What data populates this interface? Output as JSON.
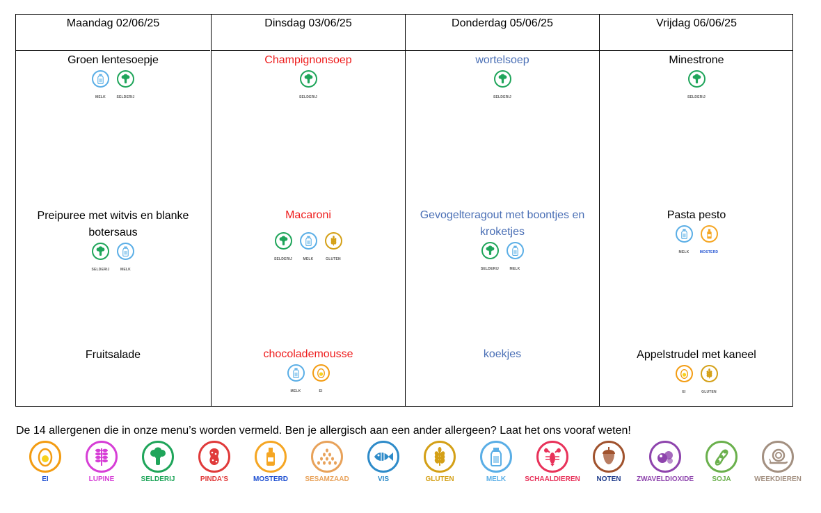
{
  "menu": {
    "columns": [
      {
        "day": "Maandag 02/06/25",
        "soup": {
          "name": "Groen lentesoepje",
          "allergens": [
            [
              "melk",
              "MELK"
            ],
            [
              "selderij",
              "SELDERIJ"
            ]
          ]
        },
        "main": {
          "name": "Preipuree met witvis en blanke botersaus",
          "allergens": [
            [
              "selderij",
              "SELDERIJ"
            ],
            [
              "melk",
              "MELK"
            ]
          ]
        },
        "dessert": {
          "name": "Fruitsalade",
          "allergens": []
        }
      },
      {
        "day": "Dinsdag 03/06/25",
        "soup": {
          "name": "Champignonsoep",
          "allergens": [
            [
              "selderij",
              "SELDERIJ"
            ]
          ]
        },
        "main": {
          "name": "Macaroni",
          "allergens": [
            [
              "selderij",
              "SELDERIJ"
            ],
            [
              "melk",
              "MELK"
            ],
            [
              "gluten",
              "GLUTEN"
            ]
          ]
        },
        "dessert": {
          "name": "chocolademousse",
          "allergens": [
            [
              "melk",
              "MELK"
            ],
            [
              "ei",
              "EI"
            ]
          ]
        }
      },
      {
        "day": "Donderdag 05/06/25",
        "soup": {
          "name": "wortelsoep",
          "allergens": [
            [
              "selderij",
              "SELDERIJ"
            ]
          ]
        },
        "main": {
          "name": "Gevogelteragout met  boontjes en kroketjes",
          "allergens": [
            [
              "selderij",
              "SELDERIJ"
            ],
            [
              "melk",
              "MELK"
            ]
          ]
        },
        "dessert": {
          "name": "koekjes",
          "allergens": []
        }
      },
      {
        "day": "Vrijdag 06/06/25",
        "soup": {
          "name": "Minestrone",
          "allergens": [
            [
              "selderij",
              "SELDERIJ"
            ]
          ]
        },
        "main": {
          "name": "Pasta pesto",
          "allergens": [
            [
              "melk",
              "MELK"
            ],
            [
              "mosterd",
              "MOSTERD"
            ]
          ]
        },
        "dessert": {
          "name": "Appelstrudel met kaneel",
          "allergens": [
            [
              "ei",
              "EI"
            ],
            [
              "gluten",
              "GLUTEN"
            ]
          ]
        }
      }
    ],
    "dish_colors": {
      "black": "#000000",
      "red": "#ee1c1c",
      "blue": "#4a6fb5"
    }
  },
  "legend": {
    "intro": "De 14 allergenen die in onze menu’s worden vermeld. Ben je allergisch aan een ander allergeen? Laat het ons vooraf weten!",
    "items": [
      {
        "key": "ei",
        "label": "EI",
        "icon": "egg-icon",
        "color": "#f39c12"
      },
      {
        "key": "lupine",
        "label": "LUPINE",
        "icon": "lupine-icon",
        "color": "#d63ed6"
      },
      {
        "key": "selderij",
        "label": "SELDERIJ",
        "icon": "celery-icon",
        "color": "#1fa55a"
      },
      {
        "key": "pindas",
        "label": "PINDA'S",
        "icon": "peanut-icon",
        "color": "#e03a3a"
      },
      {
        "key": "mosterd",
        "label": "MOSTERD",
        "icon": "mustard-icon",
        "color": "#f5a623"
      },
      {
        "key": "sesamzaad",
        "label": "SESAMZAAD",
        "icon": "sesame-icon",
        "color": "#e8a25a"
      },
      {
        "key": "vis",
        "label": "VIS",
        "icon": "fish-icon",
        "color": "#2e8bc9"
      },
      {
        "key": "gluten",
        "label": "GLUTEN",
        "icon": "wheat-icon",
        "color": "#d4a017"
      },
      {
        "key": "melk",
        "label": "MELK",
        "icon": "milk-icon",
        "color": "#5aaee6"
      },
      {
        "key": "schaaldieren",
        "label": "SCHAALDIEREN",
        "icon": "lobster-icon",
        "color": "#e8325a"
      },
      {
        "key": "noten",
        "label": "NOTEN",
        "icon": "acorn-icon",
        "color": "#a0522d"
      },
      {
        "key": "zwaveldioxide",
        "label": "ZWAVELDIOXIDE",
        "icon": "sulphite-icon",
        "color": "#8e44ad"
      },
      {
        "key": "soja",
        "label": "SOJA",
        "icon": "soy-icon",
        "color": "#6ab04c"
      },
      {
        "key": "weekdieren",
        "label": "WEEKDIEREN",
        "icon": "snail-icon",
        "color": "#a39081"
      }
    ]
  }
}
